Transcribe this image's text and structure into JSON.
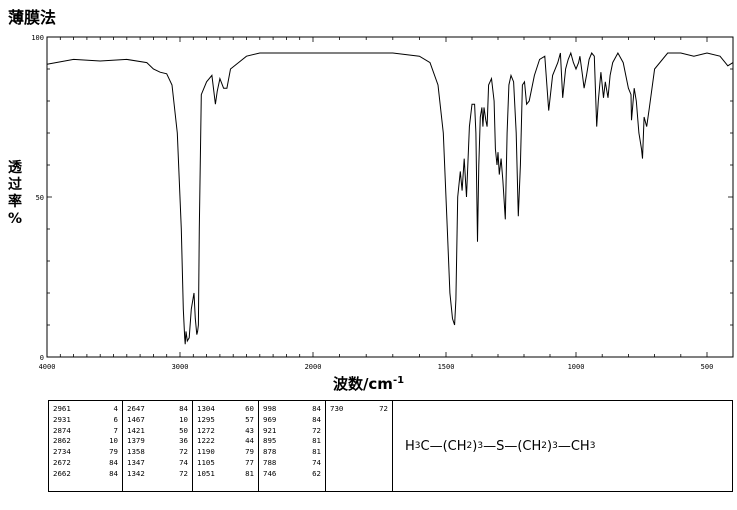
{
  "header": {
    "title": "薄膜法"
  },
  "axes": {
    "ylabel_chars": [
      "透",
      "过",
      "率",
      "%"
    ],
    "xlabel": "波数/cm",
    "xlabel_exp": "-1"
  },
  "chart_data": {
    "type": "line",
    "title": "薄膜法",
    "xlabel": "波数/cm-1",
    "ylabel": "透过率%",
    "xlim": [
      4000,
      400
    ],
    "ylim": [
      0,
      100
    ],
    "x_ticks": [
      4000,
      3000,
      2000,
      1500,
      1000,
      500
    ],
    "y_ticks": [
      0,
      50,
      100
    ],
    "x_tick_labels": [
      "4000",
      "3000",
      "2000",
      "1500",
      "1000",
      "500"
    ],
    "y_tick_labels": [
      "0",
      "50",
      "100"
    ],
    "grid": false,
    "series": [
      {
        "color": "#000000",
        "x": [
          4000,
          3800,
          3600,
          3400,
          3250,
          3200,
          3150,
          3100,
          3060,
          3020,
          2990,
          2975,
          2965,
          2961,
          2955,
          2945,
          2931,
          2915,
          2895,
          2885,
          2874,
          2868,
          2862,
          2855,
          2840,
          2800,
          2760,
          2734,
          2720,
          2700,
          2672,
          2662,
          2647,
          2620,
          2560,
          2500,
          2400,
          2200,
          2000,
          1800,
          1700,
          1600,
          1560,
          1530,
          1510,
          1495,
          1485,
          1475,
          1467,
          1462,
          1455,
          1445,
          1438,
          1430,
          1421,
          1410,
          1400,
          1390,
          1385,
          1379,
          1374,
          1368,
          1362,
          1358,
          1354,
          1347,
          1342,
          1336,
          1325,
          1315,
          1310,
          1304,
          1300,
          1295,
          1288,
          1281,
          1272,
          1265,
          1258,
          1250,
          1240,
          1230,
          1222,
          1214,
          1206,
          1198,
          1190,
          1180,
          1160,
          1140,
          1120,
          1105,
          1090,
          1070,
          1060,
          1051,
          1040,
          1030,
          1020,
          1010,
          1000,
          990,
          985,
          975,
          969,
          960,
          950,
          940,
          930,
          921,
          915,
          905,
          895,
          888,
          878,
          870,
          860,
          840,
          820,
          800,
          790,
          788,
          784,
          778,
          770,
          760,
          750,
          746,
          740,
          730,
          720,
          700,
          650,
          600,
          550,
          500,
          450,
          430,
          420,
          400
        ],
        "y": [
          91.5,
          93,
          92.5,
          93,
          92,
          90,
          89,
          88.5,
          85,
          70,
          40,
          15,
          6,
          4,
          8,
          5,
          6,
          15,
          20,
          12,
          7,
          8,
          10,
          40,
          82,
          86,
          88,
          79,
          83,
          87,
          84,
          84,
          84,
          90,
          92,
          94,
          95,
          95,
          95,
          95,
          95,
          94,
          92,
          85,
          70,
          40,
          20,
          12,
          10,
          18,
          50,
          58,
          52,
          62,
          50,
          72,
          79,
          79,
          70,
          36,
          60,
          75,
          78,
          72,
          78,
          74,
          72,
          85,
          87,
          80,
          65,
          60,
          64,
          57,
          62,
          55,
          43,
          70,
          85,
          88,
          86,
          70,
          44,
          60,
          85,
          86,
          79,
          80,
          88,
          93,
          94,
          77,
          88,
          92,
          95,
          81,
          90,
          93,
          95,
          92,
          90,
          92,
          94,
          88,
          84,
          88,
          93,
          95,
          94,
          72,
          80,
          89,
          81,
          86,
          81,
          88,
          92,
          95,
          92,
          84,
          82,
          74,
          78,
          84,
          80,
          70,
          65,
          62,
          75,
          72,
          78,
          90,
          95,
          95,
          94,
          95,
          94,
          92,
          91,
          92
        ]
      }
    ]
  },
  "peak_table": [
    [
      [
        "2961",
        "4"
      ],
      [
        "2931",
        "6"
      ],
      [
        "2874",
        "7"
      ],
      [
        "2862",
        "10"
      ],
      [
        "2734",
        "79"
      ],
      [
        "2672",
        "84"
      ],
      [
        "2662",
        "84"
      ]
    ],
    [
      [
        "2647",
        "84"
      ],
      [
        "1467",
        "10"
      ],
      [
        "1421",
        "50"
      ],
      [
        "1379",
        "36"
      ],
      [
        "1358",
        "72"
      ],
      [
        "1347",
        "74"
      ],
      [
        "1342",
        "72"
      ]
    ],
    [
      [
        "1304",
        "60"
      ],
      [
        "1295",
        "57"
      ],
      [
        "1272",
        "43"
      ],
      [
        "1222",
        "44"
      ],
      [
        "1190",
        "79"
      ],
      [
        "1105",
        "77"
      ],
      [
        "1051",
        "81"
      ]
    ],
    [
      [
        "998",
        "84"
      ],
      [
        "969",
        "84"
      ],
      [
        "921",
        "72"
      ],
      [
        "895",
        "81"
      ],
      [
        "878",
        "81"
      ],
      [
        "788",
        "74"
      ],
      [
        "746",
        "62"
      ]
    ],
    [
      [
        "730",
        "72"
      ]
    ]
  ],
  "structure": {
    "a1": "H",
    "a1s": "3",
    "a2": "C",
    "b1": "—",
    "p1": "(CH",
    "p1s": "2",
    "p1c": ")",
    "p1n": "3",
    "b2": "—",
    "s": "S",
    "b3": "—",
    "p2": "(CH",
    "p2s": "2",
    "p2c": ")",
    "p2n": "3",
    "b4": "—",
    "e": "CH",
    "es": "3"
  }
}
